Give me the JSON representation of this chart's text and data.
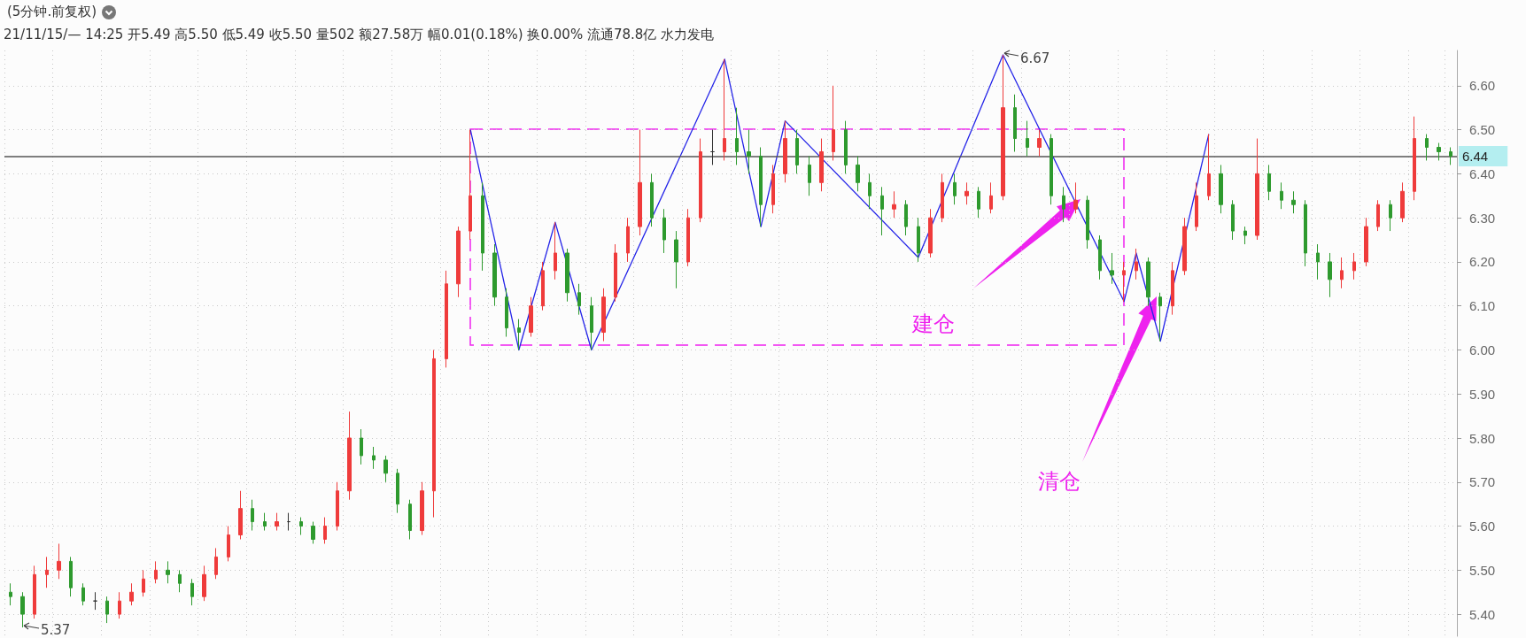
{
  "chart_data": {
    "type": "candlestick",
    "title": "(5分钟.前复权)",
    "subtitle": "21/11/15/— 14:25 开5.49 高5.50 低5.49 收5.50 量502 额27.58万 幅0.01(0.18%) 换0.00% 流通78.8亿 水力发电",
    "categories": [
      null,
      null,
      null,
      null,
      null,
      null,
      null,
      null,
      null,
      null,
      null,
      null,
      null,
      null,
      null,
      null,
      null,
      null,
      null,
      null,
      null,
      null,
      null,
      null,
      null,
      null,
      null,
      null,
      null,
      null,
      null,
      null,
      null,
      null,
      null,
      null,
      null,
      null,
      null,
      null,
      null,
      null,
      null,
      null,
      null,
      null,
      null,
      null,
      null,
      null,
      null,
      null,
      null,
      null,
      null,
      null,
      null,
      null,
      null,
      null,
      null,
      null,
      null,
      null,
      null,
      null,
      null,
      null,
      null,
      null,
      null,
      null,
      null,
      null,
      null,
      null,
      null,
      null,
      null,
      null,
      null,
      null,
      null,
      null,
      null,
      null,
      null,
      null,
      null,
      null,
      null,
      null,
      null,
      null,
      null,
      null,
      null,
      null,
      null,
      null,
      null,
      null,
      null,
      null,
      null,
      null,
      null,
      null,
      null,
      null,
      null,
      null,
      null,
      null,
      null,
      null,
      null,
      null,
      null,
      null
    ],
    "ylim": [
      5.35,
      6.68
    ],
    "yticks": [
      {
        "value": 5.4,
        "label": "5.40"
      },
      {
        "value": 5.5,
        "label": "5.50"
      },
      {
        "value": 5.6,
        "label": "5.60"
      },
      {
        "value": 5.7,
        "label": "5.70"
      },
      {
        "value": 5.8,
        "label": "5.80"
      },
      {
        "value": 5.9,
        "label": "5.90"
      },
      {
        "value": 6.0,
        "label": "6.00"
      },
      {
        "value": 6.1,
        "label": "6.10"
      },
      {
        "value": 6.2,
        "label": "6.20"
      },
      {
        "value": 6.3,
        "label": "6.30"
      },
      {
        "value": 6.4,
        "label": "6.40"
      },
      {
        "value": 6.5,
        "label": "6.50"
      },
      {
        "value": 6.6,
        "label": "6.60"
      }
    ],
    "grid": true,
    "tick_labels": "y",
    "series": [
      {
        "ohlc": [
          [
            5.45,
            5.47,
            5.42,
            5.44
          ],
          [
            5.44,
            5.45,
            5.37,
            5.4
          ],
          [
            5.4,
            5.51,
            5.39,
            5.49
          ],
          [
            5.49,
            5.53,
            5.46,
            5.5
          ],
          [
            5.5,
            5.56,
            5.48,
            5.52
          ],
          [
            5.52,
            5.53,
            5.44,
            5.46
          ],
          [
            5.46,
            5.47,
            5.42,
            5.43
          ],
          [
            5.43,
            5.45,
            5.41,
            5.43
          ],
          [
            5.43,
            5.44,
            5.38,
            5.4
          ],
          [
            5.4,
            5.45,
            5.39,
            5.43
          ],
          [
            5.43,
            5.47,
            5.42,
            5.45
          ],
          [
            5.45,
            5.5,
            5.44,
            5.48
          ],
          [
            5.48,
            5.52,
            5.47,
            5.5
          ],
          [
            5.5,
            5.52,
            5.47,
            5.49
          ],
          [
            5.49,
            5.5,
            5.45,
            5.47
          ],
          [
            5.47,
            5.48,
            5.42,
            5.44
          ],
          [
            5.44,
            5.51,
            5.43,
            5.49
          ],
          [
            5.49,
            5.55,
            5.48,
            5.53
          ],
          [
            5.53,
            5.6,
            5.52,
            5.58
          ],
          [
            5.58,
            5.68,
            5.57,
            5.64
          ],
          [
            5.64,
            5.66,
            5.59,
            5.61
          ],
          [
            5.61,
            5.63,
            5.59,
            5.6
          ],
          [
            5.6,
            5.63,
            5.59,
            5.61
          ],
          [
            5.61,
            5.63,
            5.59,
            5.61
          ],
          [
            5.61,
            5.62,
            5.58,
            5.6
          ],
          [
            5.6,
            5.61,
            5.56,
            5.57
          ],
          [
            5.57,
            5.62,
            5.56,
            5.6
          ],
          [
            5.6,
            5.7,
            5.59,
            5.68
          ],
          [
            5.68,
            5.86,
            5.66,
            5.8
          ],
          [
            5.8,
            5.82,
            5.74,
            5.76
          ],
          [
            5.76,
            5.78,
            5.73,
            5.75
          ],
          [
            5.75,
            5.76,
            5.7,
            5.72
          ],
          [
            5.72,
            5.73,
            5.63,
            5.65
          ],
          [
            5.65,
            5.66,
            5.57,
            5.59
          ],
          [
            5.59,
            5.7,
            5.58,
            5.68
          ],
          [
            5.68,
            6.0,
            5.62,
            5.98
          ],
          [
            5.98,
            6.18,
            5.96,
            6.15
          ],
          [
            6.15,
            6.28,
            6.12,
            6.27
          ],
          [
            6.27,
            6.5,
            6.25,
            6.35
          ],
          [
            6.35,
            6.38,
            6.18,
            6.22
          ],
          [
            6.22,
            6.24,
            6.1,
            6.12
          ],
          [
            6.12,
            6.14,
            6.03,
            6.05
          ],
          [
            6.05,
            6.07,
            6.0,
            6.04
          ],
          [
            6.04,
            6.12,
            6.03,
            6.1
          ],
          [
            6.1,
            6.2,
            6.09,
            6.18
          ],
          [
            6.18,
            6.29,
            6.16,
            6.22
          ],
          [
            6.22,
            6.23,
            6.11,
            6.13
          ],
          [
            6.13,
            6.15,
            6.08,
            6.1
          ],
          [
            6.1,
            6.12,
            6.0,
            6.04
          ],
          [
            6.04,
            6.14,
            6.02,
            6.12
          ],
          [
            6.12,
            6.24,
            6.11,
            6.22
          ],
          [
            6.22,
            6.3,
            6.2,
            6.28
          ],
          [
            6.28,
            6.5,
            6.26,
            6.38
          ],
          [
            6.38,
            6.4,
            6.28,
            6.3
          ],
          [
            6.3,
            6.32,
            6.22,
            6.25
          ],
          [
            6.25,
            6.27,
            6.14,
            6.2
          ],
          [
            6.2,
            6.32,
            6.19,
            6.3
          ],
          [
            6.3,
            6.48,
            6.29,
            6.45
          ],
          [
            6.45,
            6.5,
            6.42,
            6.45
          ],
          [
            6.45,
            6.66,
            6.43,
            6.48
          ],
          [
            6.48,
            6.55,
            6.42,
            6.45
          ],
          [
            6.45,
            6.5,
            6.4,
            6.44
          ],
          [
            6.44,
            6.46,
            6.28,
            6.33
          ],
          [
            6.33,
            6.42,
            6.31,
            6.4
          ],
          [
            6.4,
            6.52,
            6.38,
            6.48
          ],
          [
            6.48,
            6.5,
            6.4,
            6.42
          ],
          [
            6.42,
            6.44,
            6.35,
            6.38
          ],
          [
            6.38,
            6.48,
            6.36,
            6.45
          ],
          [
            6.45,
            6.6,
            6.43,
            6.5
          ],
          [
            6.5,
            6.52,
            6.4,
            6.42
          ],
          [
            6.42,
            6.44,
            6.36,
            6.38
          ],
          [
            6.38,
            6.4,
            6.32,
            6.35
          ],
          [
            6.35,
            6.37,
            6.26,
            6.32
          ],
          [
            6.32,
            6.36,
            6.3,
            6.33
          ],
          [
            6.33,
            6.34,
            6.26,
            6.28
          ],
          [
            6.28,
            6.3,
            6.2,
            6.22
          ],
          [
            6.22,
            6.32,
            6.21,
            6.3
          ],
          [
            6.3,
            6.4,
            6.29,
            6.38
          ],
          [
            6.38,
            6.4,
            6.33,
            6.35
          ],
          [
            6.35,
            6.38,
            6.33,
            6.36
          ],
          [
            6.36,
            6.37,
            6.3,
            6.32
          ],
          [
            6.32,
            6.38,
            6.31,
            6.35
          ],
          [
            6.35,
            6.67,
            6.34,
            6.55
          ],
          [
            6.55,
            6.58,
            6.45,
            6.48
          ],
          [
            6.48,
            6.52,
            6.44,
            6.46
          ],
          [
            6.46,
            6.5,
            6.44,
            6.48
          ],
          [
            6.48,
            6.49,
            6.33,
            6.35
          ],
          [
            6.35,
            6.37,
            6.29,
            6.32
          ],
          [
            6.32,
            6.38,
            6.31,
            6.34
          ],
          [
            6.34,
            6.35,
            6.23,
            6.25
          ],
          [
            6.25,
            6.26,
            6.16,
            6.18
          ],
          [
            6.18,
            6.22,
            6.15,
            6.17
          ],
          [
            6.17,
            6.2,
            6.11,
            6.18
          ],
          [
            6.18,
            6.23,
            6.16,
            6.2
          ],
          [
            6.2,
            6.21,
            6.1,
            6.12
          ],
          [
            6.12,
            6.13,
            6.02,
            6.1
          ],
          [
            6.1,
            6.2,
            6.08,
            6.18
          ],
          [
            6.18,
            6.3,
            6.17,
            6.28
          ],
          [
            6.28,
            6.38,
            6.27,
            6.35
          ],
          [
            6.35,
            6.49,
            6.34,
            6.4
          ],
          [
            6.4,
            6.42,
            6.31,
            6.33
          ],
          [
            6.33,
            6.34,
            6.25,
            6.27
          ],
          [
            6.27,
            6.28,
            6.24,
            6.26
          ],
          [
            6.26,
            6.48,
            6.25,
            6.4
          ],
          [
            6.4,
            6.42,
            6.34,
            6.36
          ],
          [
            6.36,
            6.38,
            6.32,
            6.34
          ],
          [
            6.34,
            6.36,
            6.31,
            6.33
          ],
          [
            6.33,
            6.34,
            6.19,
            6.22
          ],
          [
            6.22,
            6.24,
            6.16,
            6.2
          ],
          [
            6.2,
            6.22,
            6.12,
            6.16
          ],
          [
            6.16,
            6.21,
            6.14,
            6.18
          ],
          [
            6.18,
            6.22,
            6.16,
            6.2
          ],
          [
            6.2,
            6.3,
            6.19,
            6.28
          ],
          [
            6.28,
            6.34,
            6.27,
            6.33
          ],
          [
            6.33,
            6.34,
            6.27,
            6.3
          ],
          [
            6.3,
            6.38,
            6.29,
            6.36
          ],
          [
            6.36,
            6.53,
            6.34,
            6.48
          ],
          [
            6.48,
            6.49,
            6.43,
            6.46
          ],
          [
            6.46,
            6.47,
            6.43,
            6.45
          ],
          [
            6.45,
            6.46,
            6.42,
            6.44
          ]
        ],
        "colors": [
          "#2e9a2e",
          "#2e9a2e",
          "#ef3b3b",
          "#ef3b3b",
          "#ef3b3b",
          "#2e9a2e",
          "#2e9a2e",
          "#333333",
          "#2e9a2e",
          "#ef3b3b",
          "#ef3b3b",
          "#ef3b3b",
          "#ef3b3b",
          "#2e9a2e",
          "#2e9a2e",
          "#2e9a2e",
          "#ef3b3b",
          "#ef3b3b",
          "#ef3b3b",
          "#ef3b3b",
          "#2e9a2e",
          "#2e9a2e",
          "#ef3b3b",
          "#333333",
          "#2e9a2e",
          "#2e9a2e",
          "#ef3b3b",
          "#ef3b3b",
          "#ef3b3b",
          "#2e9a2e",
          "#2e9a2e",
          "#2e9a2e",
          "#2e9a2e",
          "#2e9a2e",
          "#ef3b3b",
          "#ef3b3b",
          "#ef3b3b",
          "#ef3b3b",
          "#ef3b3b",
          "#2e9a2e",
          "#2e9a2e",
          "#2e9a2e",
          "#2e9a2e",
          "#ef3b3b",
          "#ef3b3b",
          "#ef3b3b",
          "#2e9a2e",
          "#2e9a2e",
          "#2e9a2e",
          "#ef3b3b",
          "#ef3b3b",
          "#ef3b3b",
          "#ef3b3b",
          "#2e9a2e",
          "#2e9a2e",
          "#2e9a2e",
          "#ef3b3b",
          "#ef3b3b",
          "#333333",
          "#ef3b3b",
          "#2e9a2e",
          "#2e9a2e",
          "#2e9a2e",
          "#ef3b3b",
          "#ef3b3b",
          "#2e9a2e",
          "#2e9a2e",
          "#ef3b3b",
          "#ef3b3b",
          "#2e9a2e",
          "#2e9a2e",
          "#2e9a2e",
          "#2e9a2e",
          "#ef3b3b",
          "#2e9a2e",
          "#2e9a2e",
          "#ef3b3b",
          "#ef3b3b",
          "#2e9a2e",
          "#ef3b3b",
          "#2e9a2e",
          "#ef3b3b",
          "#ef3b3b",
          "#2e9a2e",
          "#2e9a2e",
          "#ef3b3b",
          "#2e9a2e",
          "#2e9a2e",
          "#ef3b3b",
          "#2e9a2e",
          "#2e9a2e",
          "#2e9a2e",
          "#ef3b3b",
          "#ef3b3b",
          "#2e9a2e",
          "#2e9a2e",
          "#ef3b3b",
          "#ef3b3b",
          "#ef3b3b",
          "#ef3b3b",
          "#2e9a2e",
          "#2e9a2e",
          "#2e9a2e",
          "#ef3b3b",
          "#2e9a2e",
          "#2e9a2e",
          "#2e9a2e",
          "#2e9a2e",
          "#2e9a2e",
          "#2e9a2e",
          "#ef3b3b",
          "#ef3b3b",
          "#ef3b3b",
          "#ef3b3b",
          "#2e9a2e",
          "#ef3b3b",
          "#ef3b3b",
          "#2e9a2e",
          "#2e9a2e",
          "#2e9a2e"
        ]
      },
      {
        "type": "line",
        "color": "#2424e8",
        "marker": "none",
        "line_style": "solid",
        "values": [
          null,
          null,
          null,
          null,
          null,
          null,
          null,
          null,
          null,
          null,
          null,
          null,
          null,
          null,
          null,
          null,
          null,
          null,
          null,
          null,
          null,
          null,
          null,
          null,
          null,
          null,
          null,
          null,
          null,
          null,
          null,
          null,
          null,
          null,
          null,
          null,
          null,
          null,
          6.5,
          null,
          null,
          null,
          6.0,
          null,
          null,
          6.29,
          null,
          null,
          6.0,
          null,
          null,
          null,
          null,
          null,
          null,
          null,
          null,
          null,
          null,
          6.66,
          null,
          null,
          6.28,
          null,
          6.52,
          null,
          null,
          null,
          null,
          null,
          null,
          null,
          null,
          null,
          null,
          6.21,
          null,
          null,
          null,
          null,
          null,
          null,
          6.67,
          null,
          null,
          null,
          null,
          null,
          null,
          null,
          null,
          null,
          6.11,
          6.22,
          null,
          6.02,
          null,
          null,
          null,
          6.49,
          null,
          null,
          null,
          null,
          null,
          null,
          null,
          null,
          null,
          null,
          null,
          null,
          null,
          null,
          null,
          null,
          null,
          null,
          null,
          null
        ]
      }
    ],
    "ref_lines": [
      {
        "axis": "y",
        "value": 6.44,
        "label": "6.44",
        "color": "#555555"
      }
    ],
    "annotations": [
      "6.67",
      "5.37",
      "建仓",
      "清仓"
    ]
  }
}
